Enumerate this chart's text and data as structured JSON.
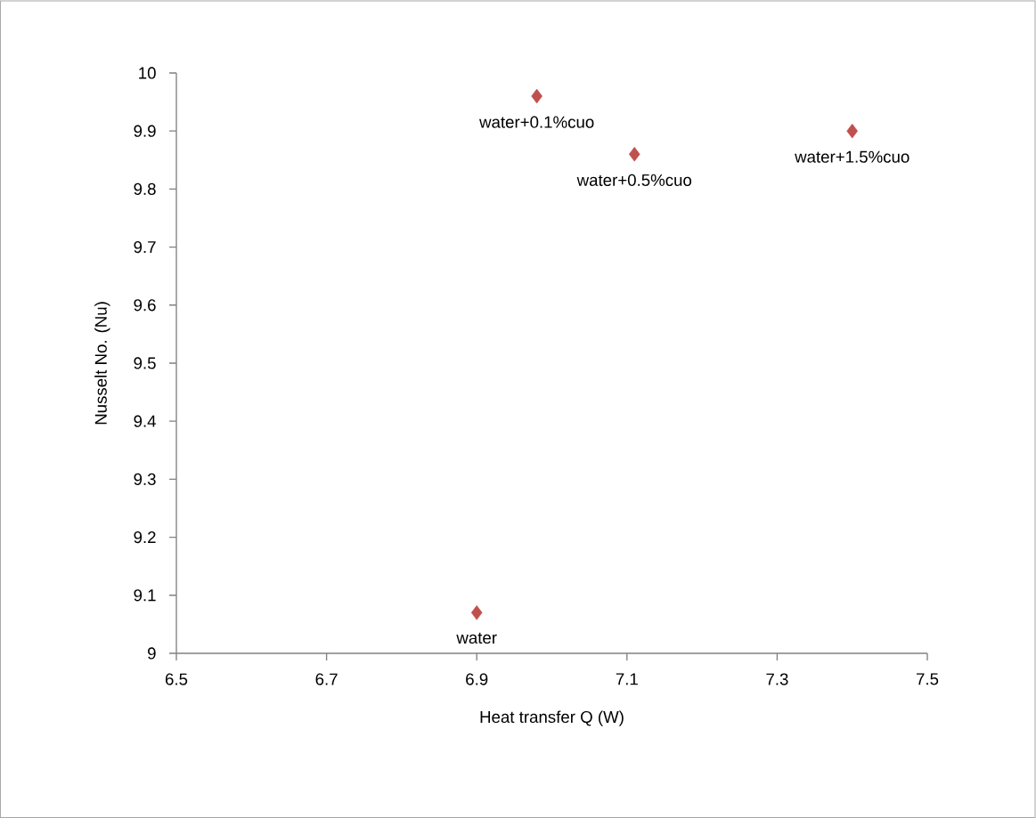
{
  "chart_data": {
    "type": "scatter",
    "xlabel": "Heat transfer Q (W)",
    "ylabel": "Nusselt No. (Nu)",
    "series": [
      {
        "color": "#c0504d",
        "x": [
          6.9,
          6.98,
          7.11,
          7.4
        ],
        "values": [
          9.07,
          9.96,
          9.86,
          9.9
        ]
      }
    ],
    "annotations": [
      {
        "text": "water",
        "x": 6.9,
        "y": 9.07
      },
      {
        "text": "water+0.1%cuo",
        "x": 6.98,
        "y": 9.96
      },
      {
        "text": "water+0.5%cuo",
        "x": 7.11,
        "y": 9.86
      },
      {
        "text": "water+1.5%cuo",
        "x": 7.4,
        "y": 9.9
      }
    ],
    "xlim": [
      6.5,
      7.5
    ],
    "ylim": [
      9,
      10
    ],
    "xticks": [
      6.5,
      6.7,
      6.9,
      7.1,
      7.3,
      7.5
    ],
    "yticks": [
      9,
      9.1,
      9.2,
      9.3,
      9.4,
      9.5,
      9.6,
      9.7,
      9.8,
      9.9,
      10
    ],
    "marker": "diamond"
  }
}
